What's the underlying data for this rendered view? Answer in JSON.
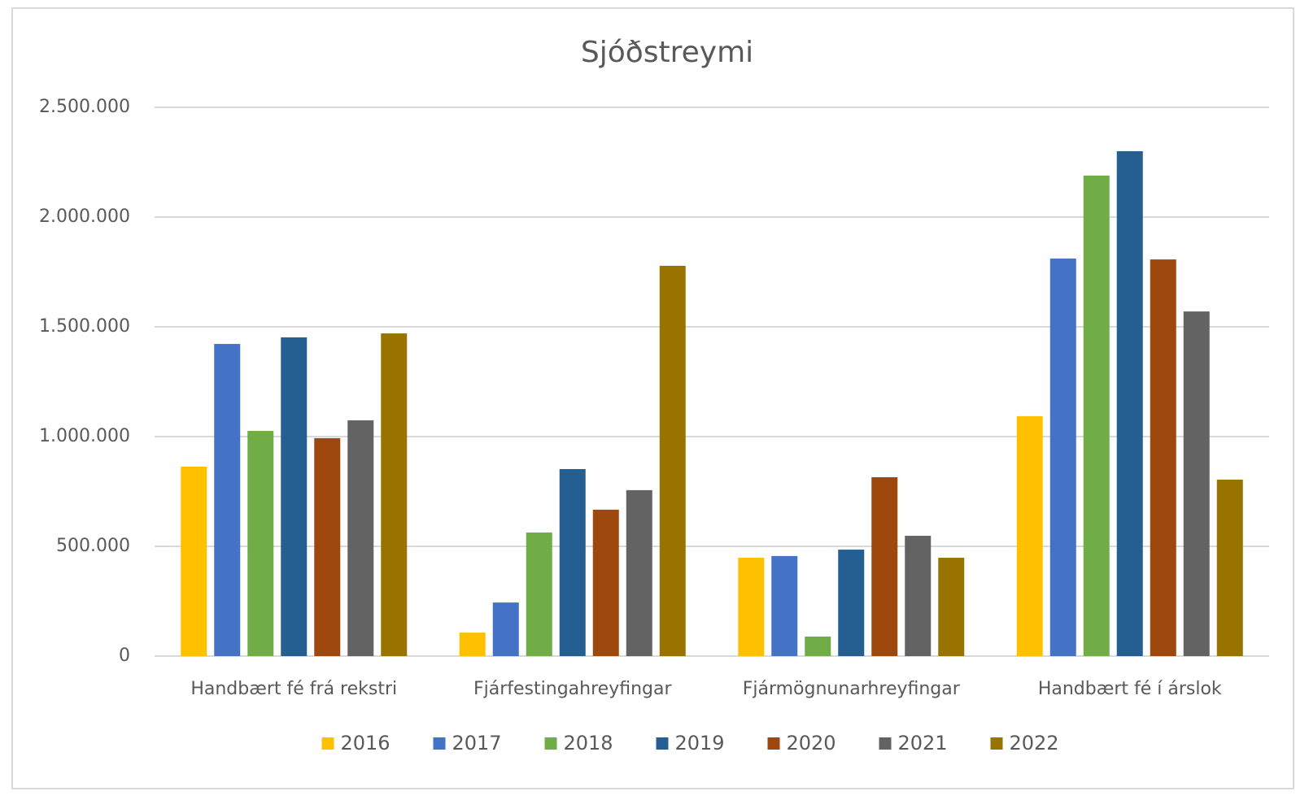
{
  "chart_data": {
    "type": "bar",
    "title": "Sjóðstreymi",
    "categories": [
      "Handbært fé frá rekstri",
      "Fjárfestingahreyfingar",
      "Fjármögnunarhreyfingar",
      "Handbært fé í árslok"
    ],
    "series": [
      {
        "name": "2016",
        "color": "#ffc000",
        "values": [
          863000,
          107000,
          448000,
          1093000
        ]
      },
      {
        "name": "2017",
        "color": "#4472c4",
        "values": [
          1422000,
          244000,
          456000,
          1811000
        ]
      },
      {
        "name": "2018",
        "color": "#70ad47",
        "values": [
          1026000,
          563000,
          89000,
          2189000
        ]
      },
      {
        "name": "2019",
        "color": "#255e91",
        "values": [
          1452000,
          852000,
          485000,
          2300000
        ]
      },
      {
        "name": "2020",
        "color": "#9e480e",
        "values": [
          993000,
          667000,
          815000,
          1807000
        ]
      },
      {
        "name": "2021",
        "color": "#636363",
        "values": [
          1074000,
          756000,
          548000,
          1570000
        ]
      },
      {
        "name": "2022",
        "color": "#997300",
        "values": [
          1470000,
          1778000,
          448000,
          804000
        ]
      }
    ],
    "ylim": [
      0,
      2500000
    ],
    "yticks": [
      0,
      {
        "value": 500000,
        "label": "500.000"
      },
      {
        "value": 1000000,
        "label": "1.000.000"
      },
      {
        "value": 1500000,
        "label": "1.500.000"
      },
      {
        "value": 2000000,
        "label": "2.000.000"
      },
      {
        "value": 2500000,
        "label": "2.500.000"
      }
    ],
    "grid": true,
    "legend": "bottom"
  }
}
